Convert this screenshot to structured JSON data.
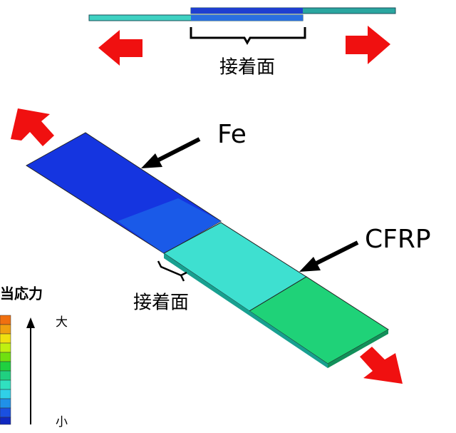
{
  "top_label": "接着面",
  "labels": {
    "fe": "Fe",
    "cfrp": "CFRP",
    "adhesive": "接着面"
  },
  "legend": {
    "title": "当応力",
    "high": "大",
    "low": "小"
  }
}
